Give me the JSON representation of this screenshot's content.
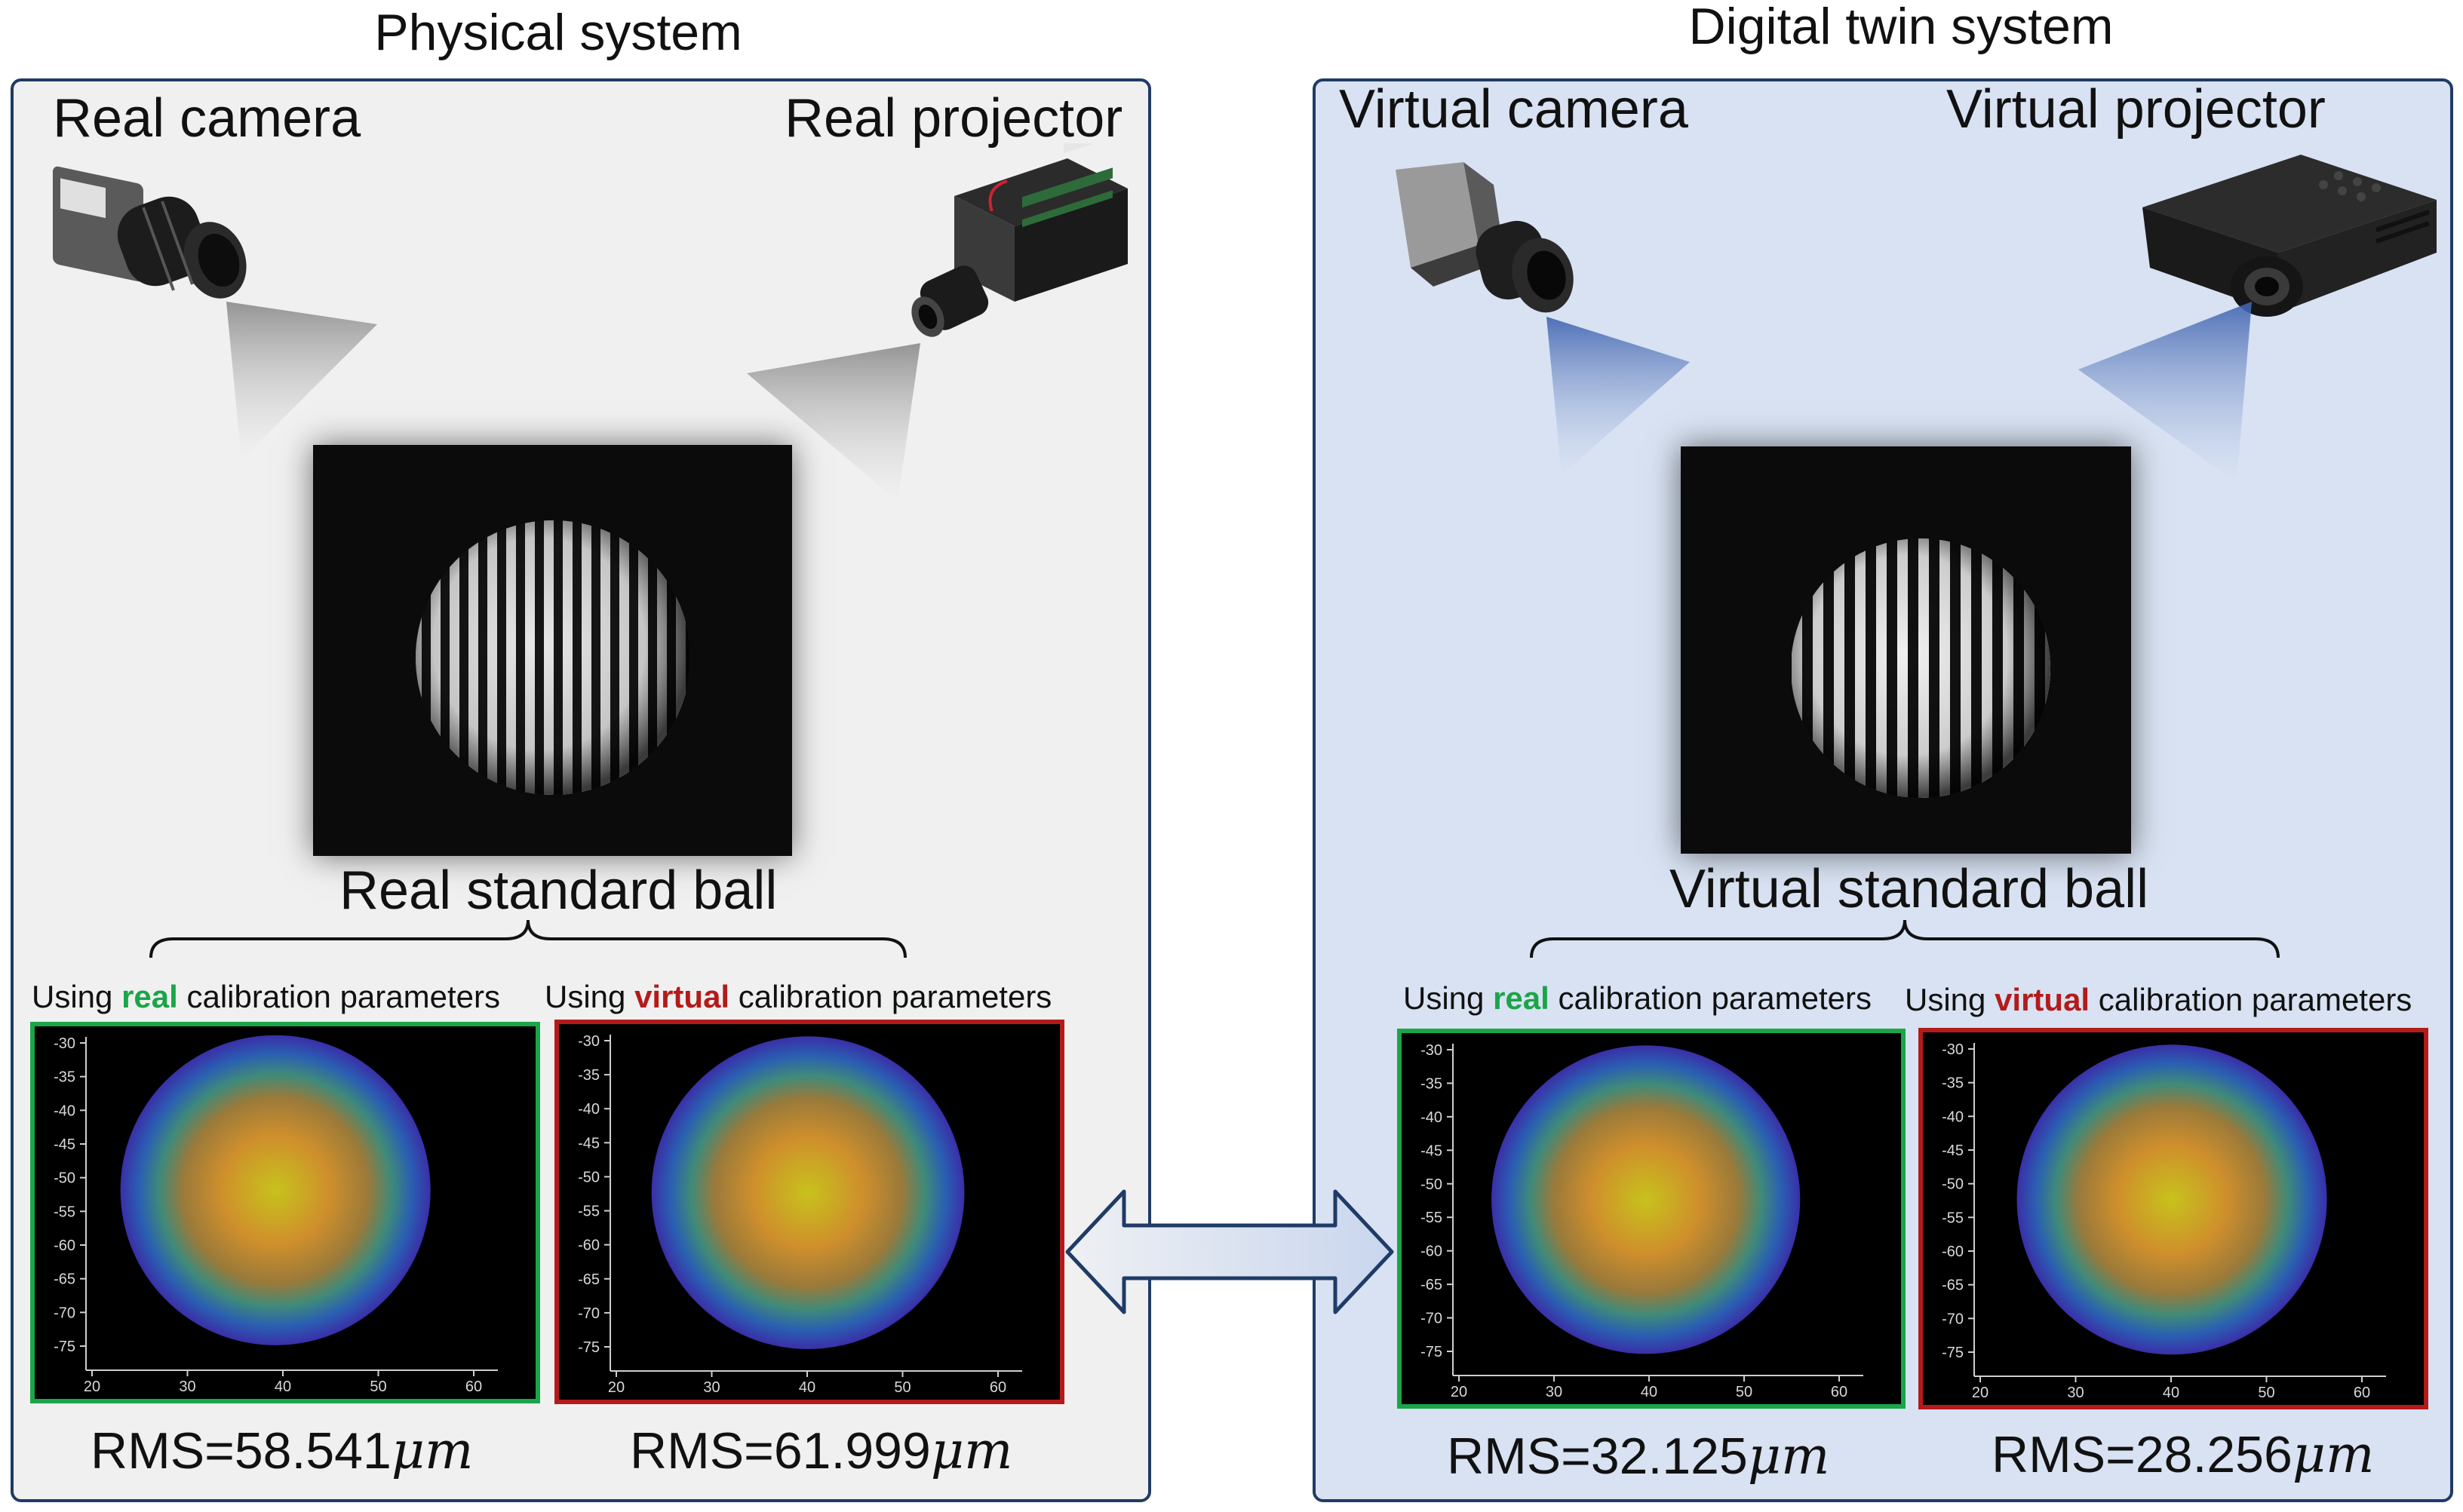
{
  "physical": {
    "title": "Physical system",
    "camera_label": "Real camera",
    "projector_label": "Real projector",
    "ball_label": "Real standard ball",
    "panel_color": "#f0f0f0"
  },
  "digital": {
    "title": "Digital twin system",
    "camera_label": "Virtual camera",
    "projector_label": "Virtual projector",
    "ball_label": "Virtual standard ball",
    "panel_color": "#d8e2f2"
  },
  "captions": {
    "using": "Using",
    "real_word": "real",
    "virtual_word": "virtual",
    "suffix": "calibration parameters",
    "real_color": "#1aa548",
    "virtual_color": "#b31b1b"
  },
  "rms": {
    "physical_real": "RMS=58.541",
    "physical_virtual": "RMS=61.999",
    "digital_real": "RMS=32.125",
    "digital_virtual": "RMS=28.256",
    "unit": "μm"
  },
  "plot_axes": {
    "x_ticks": [
      "20",
      "30",
      "40",
      "50",
      "60"
    ],
    "y_ticks": [
      "-30",
      "-35",
      "-40",
      "-45",
      "-50",
      "-55",
      "-60",
      "-65",
      "-70",
      "-75"
    ]
  }
}
